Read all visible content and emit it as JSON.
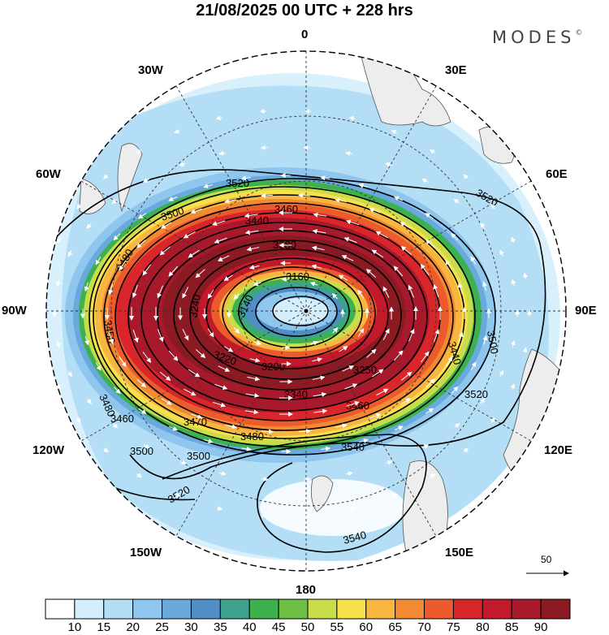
{
  "title": "21/08/2025  00 UTC  + 228 hrs",
  "brand": "MODES",
  "brand_mark": "©",
  "longitude_labels": [
    {
      "id": "lon-0",
      "text": "0"
    },
    {
      "id": "lon-30e",
      "text": "30E"
    },
    {
      "id": "lon-60e",
      "text": "60E"
    },
    {
      "id": "lon-90e",
      "text": "90E"
    },
    {
      "id": "lon-120e",
      "text": "120E"
    },
    {
      "id": "lon-150e",
      "text": "150E"
    },
    {
      "id": "lon-180",
      "text": "180"
    },
    {
      "id": "lon-150w",
      "text": "150W"
    },
    {
      "id": "lon-120w",
      "text": "120W"
    },
    {
      "id": "lon-90w",
      "text": "90W"
    },
    {
      "id": "lon-60w",
      "text": "60W"
    },
    {
      "id": "lon-30w",
      "text": "30W"
    }
  ],
  "vector_scale_label": "50",
  "colorbar": {
    "labels": [
      "10",
      "15",
      "20",
      "25",
      "30",
      "35",
      "40",
      "45",
      "50",
      "55",
      "60",
      "65",
      "70",
      "75",
      "80",
      "85",
      "90"
    ],
    "colors": [
      "#ffffff",
      "#d4eefb",
      "#b4def5",
      "#8ec6ee",
      "#6aa9dc",
      "#4f8fc6",
      "#3fa28f",
      "#3cb14e",
      "#6dc043",
      "#c9dc4a",
      "#f7e04b",
      "#f8b641",
      "#f28a34",
      "#ec5b2c",
      "#d9262b",
      "#c2192b",
      "#a8192c",
      "#8b1a22"
    ]
  },
  "contours": [
    {
      "id": "c3520-n",
      "label": "3520"
    },
    {
      "id": "c3500-n",
      "label": "3500"
    },
    {
      "id": "c3480-n",
      "label": "3480"
    },
    {
      "id": "c3460-n",
      "label": "3460"
    },
    {
      "id": "c3440-n",
      "label": "3440"
    },
    {
      "id": "c3380",
      "label": "3380"
    },
    {
      "id": "c3160",
      "label": "3160"
    },
    {
      "id": "c3140",
      "label": "3140"
    },
    {
      "id": "c3240",
      "label": "3240"
    },
    {
      "id": "c3220",
      "label": "3220"
    },
    {
      "id": "c3200",
      "label": "3200"
    },
    {
      "id": "c3250",
      "label": "3250"
    },
    {
      "id": "c3340",
      "label": "3340"
    },
    {
      "id": "c3460-s",
      "label": "3460"
    },
    {
      "id": "c3470",
      "label": "3470"
    },
    {
      "id": "c3480-s",
      "label": "3480"
    },
    {
      "id": "c3500-s",
      "label": "3500"
    },
    {
      "id": "c3500-sw",
      "label": "3500"
    },
    {
      "id": "c3520-sw",
      "label": "3520"
    },
    {
      "id": "c3520-e",
      "label": "3520"
    },
    {
      "id": "c3520-ne",
      "label": "3520"
    },
    {
      "id": "c3500-e",
      "label": "3500"
    },
    {
      "id": "c3440-e",
      "label": "3440"
    },
    {
      "id": "c3450-w",
      "label": "3450"
    },
    {
      "id": "c3480-w",
      "label": "3480"
    },
    {
      "id": "c3460-w",
      "label": "3460"
    },
    {
      "id": "c3540-se",
      "label": "3540"
    },
    {
      "id": "c3540-s",
      "label": "3540"
    }
  ]
}
